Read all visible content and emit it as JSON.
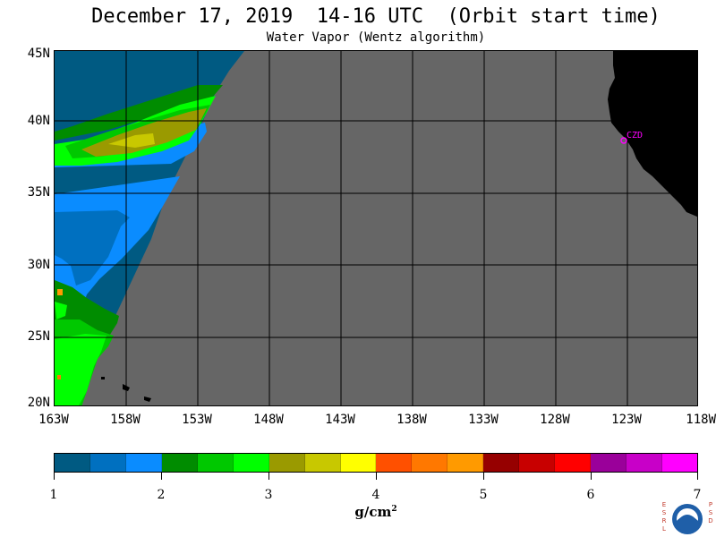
{
  "header": {
    "title": "December 17, 2019  14-16 UTC  (Orbit start time)",
    "subtitle": "Water Vapor (Wentz algorithm)"
  },
  "map": {
    "lat_labels": [
      "45N",
      "40N",
      "35N",
      "30N",
      "25N",
      "20N"
    ],
    "lon_labels": [
      "163W",
      "158W",
      "153W",
      "148W",
      "143W",
      "138W",
      "133W",
      "128W",
      "123W",
      "118W"
    ],
    "lat_range": [
      20,
      45
    ],
    "lon_range": [
      -163,
      -118
    ],
    "station_label": "CZD",
    "no_data_color": "#666666",
    "land_color": "#000000"
  },
  "colorbar": {
    "colors": [
      "#005a82",
      "#0070c0",
      "#0a8cff",
      "#008c00",
      "#00c800",
      "#00ff00",
      "#9a9a00",
      "#c8c800",
      "#ffff00",
      "#ff5000",
      "#ff7800",
      "#ff9a00",
      "#960000",
      "#c80000",
      "#ff0000",
      "#9a009a",
      "#c800c8",
      "#ff00ff"
    ],
    "tick_labels": [
      "1",
      "2",
      "3",
      "4",
      "5",
      "6",
      "7"
    ],
    "units": "g/cm",
    "units_exp": "2"
  },
  "logo": {
    "left_letters": "E\nS\nR\nL",
    "right_letters": "P\nS\nD",
    "icon": "noaa-logo"
  }
}
